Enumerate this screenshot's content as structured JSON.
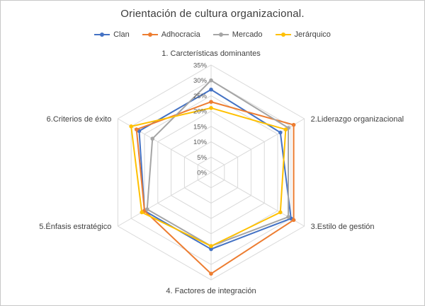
{
  "chart_data": {
    "type": "radar",
    "title": "Orientación de cultura organizacional.",
    "categories": [
      "1. Carcterísticas dominantes",
      "2.Liderazgo organizacional",
      "3.Estilo de gestión",
      "4. Factores de integración",
      "5.Énfasis estratégico",
      "6.Criterios de éxito"
    ],
    "rmin": 0,
    "rmax": 35,
    "tick_step": 5,
    "tick_format": "percent",
    "tick_labels": [
      "0%",
      "5%",
      "10%",
      "15%",
      "20%",
      "25%",
      "30%",
      "35%"
    ],
    "grid": true,
    "legend_position": "top",
    "grid_color": "#D9D9D9",
    "series": [
      {
        "name": "Clan",
        "color": "#4472C4",
        "values": [
          27,
          26,
          30,
          25,
          25,
          27
        ]
      },
      {
        "name": "Adhocracia",
        "color": "#ED7D31",
        "values": [
          23,
          31,
          31,
          33,
          25,
          28
        ]
      },
      {
        "name": "Mercado",
        "color": "#A5A5A5",
        "values": [
          30,
          29,
          29,
          24,
          24,
          22
        ]
      },
      {
        "name": "Jerárquico",
        "color": "#FFC000",
        "values": [
          21,
          28,
          26,
          24,
          26,
          30
        ]
      }
    ]
  }
}
